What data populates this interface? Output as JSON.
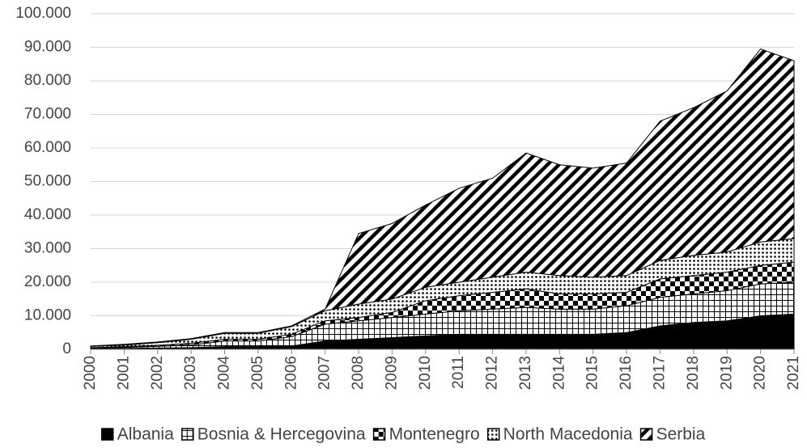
{
  "chart_data": {
    "type": "stacked_area",
    "categories": [
      "2000",
      "2001",
      "2002",
      "2003",
      "2004",
      "2005",
      "2006",
      "2007",
      "2008",
      "2009",
      "2010",
      "2011",
      "2012",
      "2013",
      "2014",
      "2015",
      "2016",
      "2017",
      "2018",
      "2019",
      "2020",
      "2021"
    ],
    "series": [
      {
        "name": "Albania",
        "color": "#000000",
        "pattern": "solid",
        "values": [
          200,
          300,
          400,
          500,
          800,
          800,
          1000,
          2500,
          3000,
          3500,
          4000,
          4500,
          4500,
          4500,
          4500,
          4500,
          5000,
          7000,
          8000,
          8500,
          10000,
          10500
        ]
      },
      {
        "name": "Bosnia & Hercegovina",
        "color": "#000000",
        "pattern": "grid",
        "values": [
          200,
          300,
          500,
          800,
          1700,
          1700,
          2800,
          5000,
          5500,
          6000,
          6500,
          7000,
          7500,
          8000,
          7500,
          7500,
          8000,
          8500,
          8500,
          9000,
          9500,
          9500
        ]
      },
      {
        "name": "Montenegro",
        "color": "#000000",
        "pattern": "checker",
        "values": [
          100,
          200,
          300,
          500,
          500,
          500,
          700,
          1000,
          1000,
          1500,
          4000,
          4500,
          5000,
          5500,
          4500,
          4500,
          4000,
          5500,
          5500,
          5500,
          5500,
          6000
        ]
      },
      {
        "name": "North Macedonia",
        "color": "#000000",
        "pattern": "dots",
        "values": [
          400,
          500,
          800,
          1200,
          1800,
          1800,
          2300,
          3000,
          4000,
          4000,
          4000,
          4000,
          4500,
          5000,
          5500,
          5000,
          5000,
          5500,
          6000,
          6000,
          7000,
          7000
        ]
      },
      {
        "name": "Serbia",
        "color": "#000000",
        "pattern": "diagonal",
        "values": [
          100,
          200,
          200,
          200,
          200,
          200,
          200,
          500,
          21000,
          22500,
          24500,
          28000,
          29500,
          35500,
          33000,
          32500,
          33500,
          41500,
          44000,
          48000,
          57500,
          53000
        ]
      }
    ],
    "ylim": [
      0,
      100000
    ],
    "yticks": [
      0,
      {
        "value": 10000,
        "label": "10.000"
      },
      {
        "value": 20000,
        "label": "20.000"
      },
      {
        "value": 30000,
        "label": "30.000"
      },
      {
        "value": 40000,
        "label": "40.000"
      },
      {
        "value": 50000,
        "label": "50.000"
      },
      {
        "value": 60000,
        "label": "60.000"
      },
      {
        "value": 70000,
        "label": "70.000"
      },
      {
        "value": 80000,
        "label": "80.000"
      },
      {
        "value": 90000,
        "label": "90.000"
      },
      {
        "value": 100000,
        "label": "100.000"
      }
    ],
    "grid": true,
    "legend": "bottom"
  }
}
